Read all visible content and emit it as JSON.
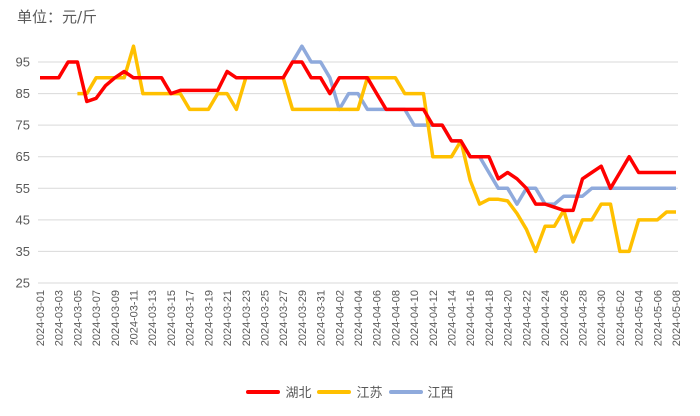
{
  "unit_label": "单位：元/斤",
  "legend": [
    {
      "name": "湖北",
      "color": "#ff0000"
    },
    {
      "name": "江苏",
      "color": "#ffc000"
    },
    {
      "name": "江西",
      "color": "#8faadc"
    }
  ],
  "chart_data": {
    "type": "line",
    "title": "",
    "unit": "元/斤",
    "xlabel": "",
    "ylabel": "",
    "ylim": [
      25,
      100
    ],
    "yticks": [
      25,
      35,
      45,
      55,
      65,
      75,
      85,
      95
    ],
    "grid": true,
    "legend_position": "bottom",
    "x_tick_labels": [
      "2024-03-01",
      "2024-03-03",
      "2024-03-05",
      "2024-03-07",
      "2024-03-09",
      "2024-03-11",
      "2024-03-13",
      "2024-03-15",
      "2024-03-17",
      "2024-03-19",
      "2024-03-21",
      "2024-03-23",
      "2024-03-25",
      "2024-03-27",
      "2024-03-29",
      "2024-03-31",
      "2024-04-02",
      "2024-04-04",
      "2024-04-06",
      "2024-04-08",
      "2024-04-10",
      "2024-04-12",
      "2024-04-14",
      "2024-04-16",
      "2024-04-18",
      "2024-04-20",
      "2024-04-22",
      "2024-04-24",
      "2024-04-26",
      "2024-04-28",
      "2024-04-30",
      "2024-05-02",
      "2024-05-04",
      "2024-05-06",
      "2024-05-08"
    ],
    "x": [
      "03-01",
      "03-02",
      "03-03",
      "03-04",
      "03-05",
      "03-06",
      "03-07",
      "03-08",
      "03-09",
      "03-10",
      "03-11",
      "03-12",
      "03-13",
      "03-14",
      "03-15",
      "03-16",
      "03-17",
      "03-18",
      "03-19",
      "03-20",
      "03-21",
      "03-22",
      "03-23",
      "03-24",
      "03-25",
      "03-26",
      "03-27",
      "03-28",
      "03-29",
      "03-30",
      "03-31",
      "04-01",
      "04-02",
      "04-03",
      "04-04",
      "04-05",
      "04-06",
      "04-07",
      "04-08",
      "04-09",
      "04-10",
      "04-11",
      "04-12",
      "04-13",
      "04-14",
      "04-15",
      "04-16",
      "04-17",
      "04-18",
      "04-19",
      "04-20",
      "04-21",
      "04-22",
      "04-23",
      "04-24",
      "04-25",
      "04-26",
      "04-27",
      "04-28",
      "04-29",
      "04-30",
      "05-01",
      "05-02",
      "05-03",
      "05-04",
      "05-05",
      "05-06",
      "05-07",
      "05-08"
    ],
    "series": [
      {
        "name": "湖北",
        "color": "#ff0000",
        "values": [
          90,
          90,
          90,
          95,
          95,
          82.5,
          83.5,
          87.5,
          90,
          92,
          90,
          90,
          90,
          90,
          85,
          86,
          86,
          86,
          86,
          86,
          92,
          90,
          90,
          90,
          90,
          90,
          90,
          95,
          95,
          90,
          90,
          85,
          90,
          90,
          90,
          90,
          85,
          80,
          80,
          80,
          80,
          80,
          75,
          75,
          70,
          70,
          65,
          65,
          65,
          58,
          60,
          58,
          55,
          50,
          50,
          49,
          48,
          48,
          58,
          60,
          62,
          55,
          60,
          65,
          60,
          60,
          60,
          60,
          60
        ]
      },
      {
        "name": "江苏",
        "color": "#ffc000",
        "values": [
          null,
          null,
          null,
          null,
          85,
          85,
          90,
          90,
          90,
          90,
          100,
          85,
          85,
          85,
          85,
          85,
          80,
          80,
          80,
          85,
          85,
          80,
          90,
          90,
          90,
          90,
          90,
          80,
          80,
          80,
          80,
          80,
          80,
          80,
          80,
          90,
          90,
          90,
          90,
          85,
          85,
          85,
          65,
          65,
          65,
          70,
          57.5,
          50,
          51.5,
          51.5,
          51,
          47,
          42,
          35,
          43,
          43,
          48,
          38,
          45,
          45,
          50,
          50,
          35,
          35,
          45,
          45,
          45,
          47.5,
          47.5
        ]
      },
      {
        "name": "江西",
        "color": "#8faadc",
        "values": [
          null,
          null,
          null,
          null,
          null,
          null,
          null,
          null,
          null,
          null,
          null,
          null,
          null,
          null,
          null,
          null,
          null,
          null,
          null,
          null,
          null,
          null,
          null,
          null,
          null,
          null,
          null,
          95,
          100,
          95,
          95,
          90,
          80,
          85,
          85,
          80,
          80,
          80,
          80,
          80,
          75,
          75,
          75,
          75,
          70,
          70,
          65,
          65,
          60,
          55,
          55,
          50,
          55,
          55,
          50,
          50,
          52.5,
          52.5,
          52.5,
          55,
          55,
          55,
          55,
          55,
          55,
          55,
          55,
          55,
          55
        ]
      }
    ]
  }
}
